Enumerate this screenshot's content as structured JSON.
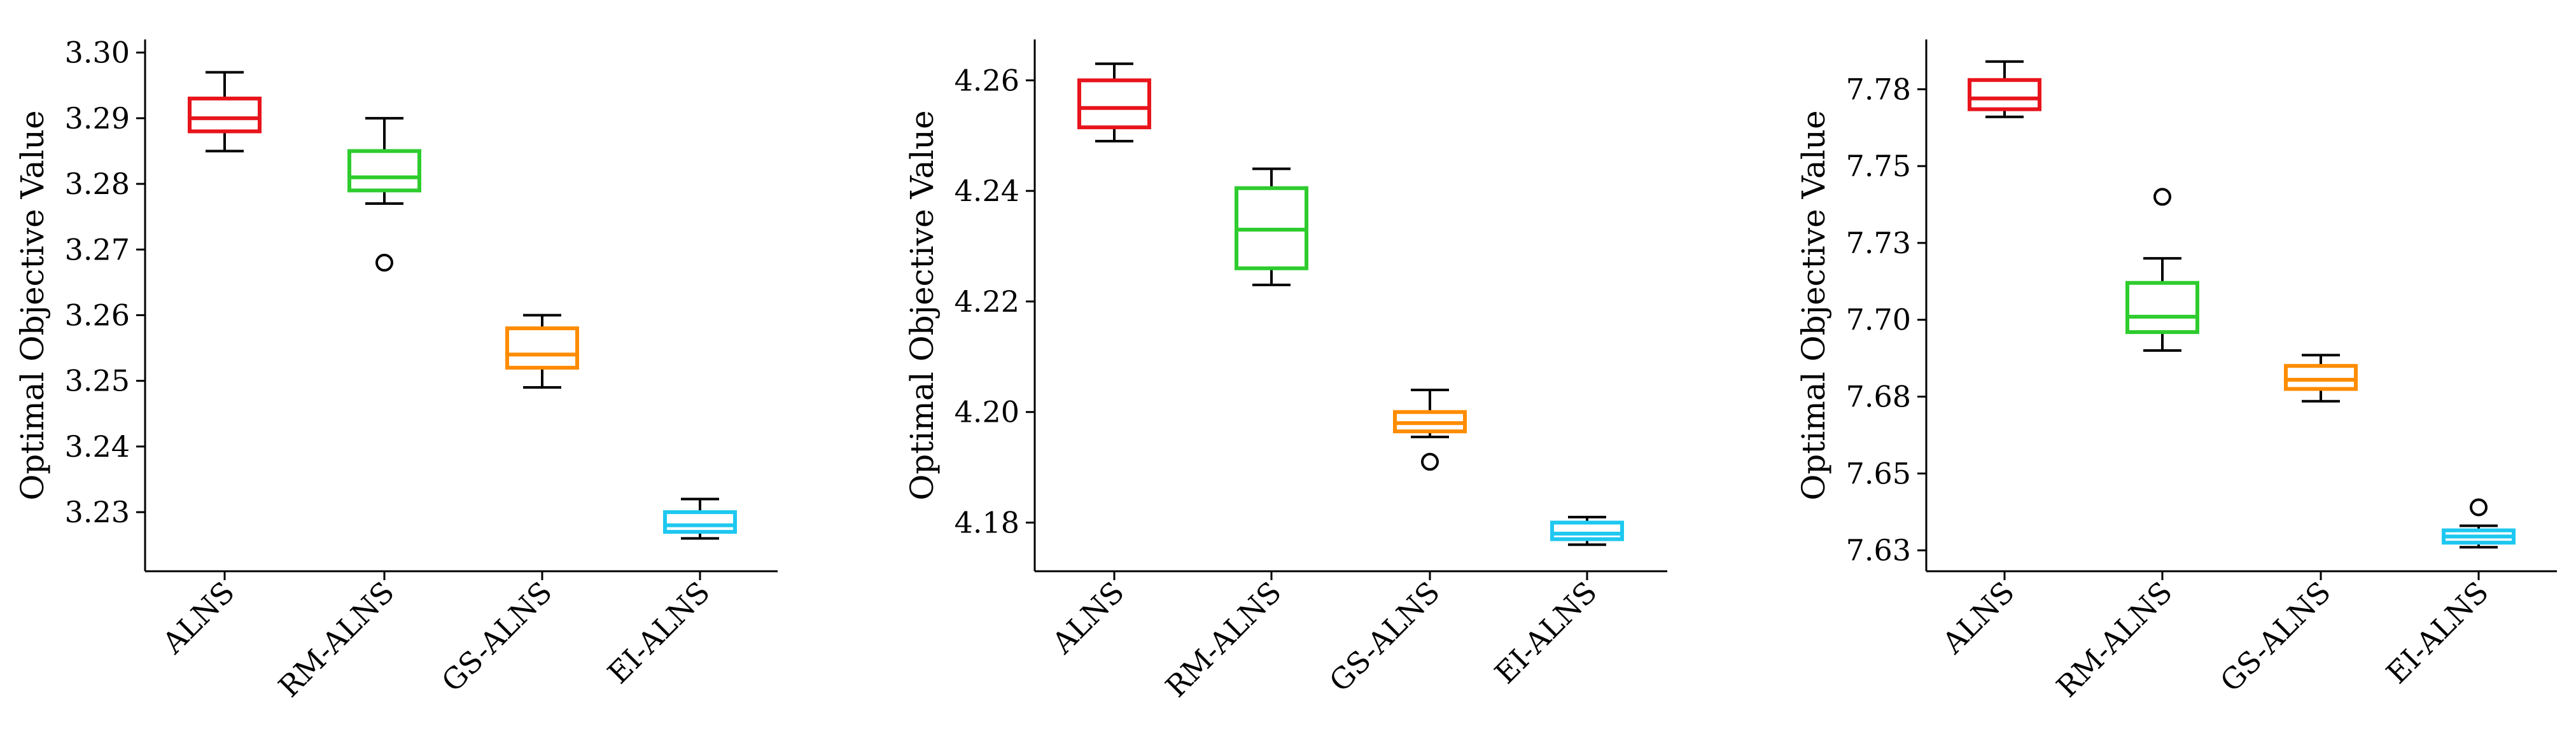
{
  "chart_data": [
    {
      "type": "box",
      "ylabel": "Optimal Objective Value",
      "ylim": [
        3.221,
        3.302
      ],
      "yticks": [
        "3.23",
        "3.24",
        "3.25",
        "3.26",
        "3.27",
        "3.28",
        "3.29",
        "3.30"
      ],
      "categories": [
        "ALNS",
        "RM-ALNS",
        "GS-ALNS",
        "EI-ALNS"
      ],
      "colors": [
        "#e8141c",
        "#2ecc2e",
        "#ff8c00",
        "#1ec8f0"
      ],
      "boxes": [
        {
          "whislo": 3.285,
          "q1": 3.288,
          "med": 3.29,
          "q3": 3.293,
          "whishi": 3.297,
          "fliers": []
        },
        {
          "whislo": 3.277,
          "q1": 3.279,
          "med": 3.281,
          "q3": 3.285,
          "whishi": 3.29,
          "fliers": [
            3.268
          ]
        },
        {
          "whislo": 3.249,
          "q1": 3.252,
          "med": 3.254,
          "q3": 3.258,
          "whishi": 3.26,
          "fliers": []
        },
        {
          "whislo": 3.226,
          "q1": 3.227,
          "med": 3.228,
          "q3": 3.23,
          "whishi": 3.232,
          "fliers": []
        }
      ]
    },
    {
      "type": "box",
      "ylabel": "Optimal Objective Value",
      "ylim": [
        4.1712,
        4.2674
      ],
      "yticks": [
        "4.18",
        "4.20",
        "4.22",
        "4.24",
        "4.26"
      ],
      "categories": [
        "ALNS",
        "RM-ALNS",
        "GS-ALNS",
        "EI-ALNS"
      ],
      "colors": [
        "#e8141c",
        "#2ecc2e",
        "#ff8c00",
        "#1ec8f0"
      ],
      "boxes": [
        {
          "whislo": 4.249,
          "q1": 4.2515,
          "med": 4.255,
          "q3": 4.26,
          "whishi": 4.263,
          "fliers": []
        },
        {
          "whislo": 4.223,
          "q1": 4.226,
          "med": 4.233,
          "q3": 4.2405,
          "whishi": 4.244,
          "fliers": []
        },
        {
          "whislo": 4.1955,
          "q1": 4.1965,
          "med": 4.198,
          "q3": 4.2,
          "whishi": 4.204,
          "fliers": [
            4.191
          ]
        },
        {
          "whislo": 4.176,
          "q1": 4.177,
          "med": 4.178,
          "q3": 4.18,
          "whishi": 4.181,
          "fliers": []
        }
      ]
    },
    {
      "type": "box",
      "ylabel": "Optimal Objective Value",
      "ylim": [
        7.6232,
        7.7962
      ],
      "yticks": [
        "7.63",
        "7.65",
        "7.68",
        "7.70",
        "7.73",
        "7.75",
        "7.78"
      ],
      "ytick_values": [
        7.63,
        7.655,
        7.68,
        7.705,
        7.73,
        7.755,
        7.78
      ],
      "categories": [
        "ALNS",
        "RM-ALNS",
        "GS-ALNS",
        "EI-ALNS"
      ],
      "colors": [
        "#e8141c",
        "#2ecc2e",
        "#ff8c00",
        "#1ec8f0"
      ],
      "boxes": [
        {
          "whislo": 7.771,
          "q1": 7.7735,
          "med": 7.777,
          "q3": 7.783,
          "whishi": 7.789,
          "fliers": []
        },
        {
          "whislo": 7.695,
          "q1": 7.701,
          "med": 7.706,
          "q3": 7.717,
          "whishi": 7.725,
          "fliers": [
            7.745
          ]
        },
        {
          "whislo": 7.6785,
          "q1": 7.6825,
          "med": 7.6855,
          "q3": 7.69,
          "whishi": 7.6935,
          "fliers": []
        },
        {
          "whislo": 7.631,
          "q1": 7.6325,
          "med": 7.6345,
          "q3": 7.6365,
          "whishi": 7.638,
          "fliers": [
            7.644
          ]
        }
      ]
    }
  ]
}
